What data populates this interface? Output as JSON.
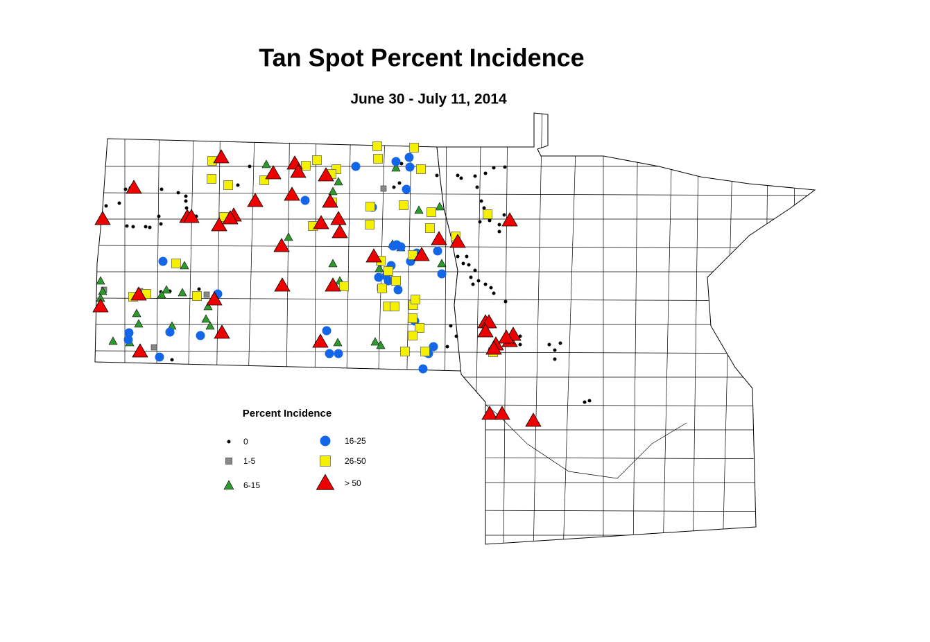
{
  "title": "Tan Spot Percent Incidence",
  "subtitle": "June 30 - July 11, 2014",
  "legend": {
    "title": "Percent Incidence",
    "items": [
      {
        "label": "0"
      },
      {
        "label": "1-5"
      },
      {
        "label": "6-15"
      },
      {
        "label": "16-25"
      },
      {
        "label": "26-50"
      },
      {
        "label": "> 50"
      }
    ]
  }
}
